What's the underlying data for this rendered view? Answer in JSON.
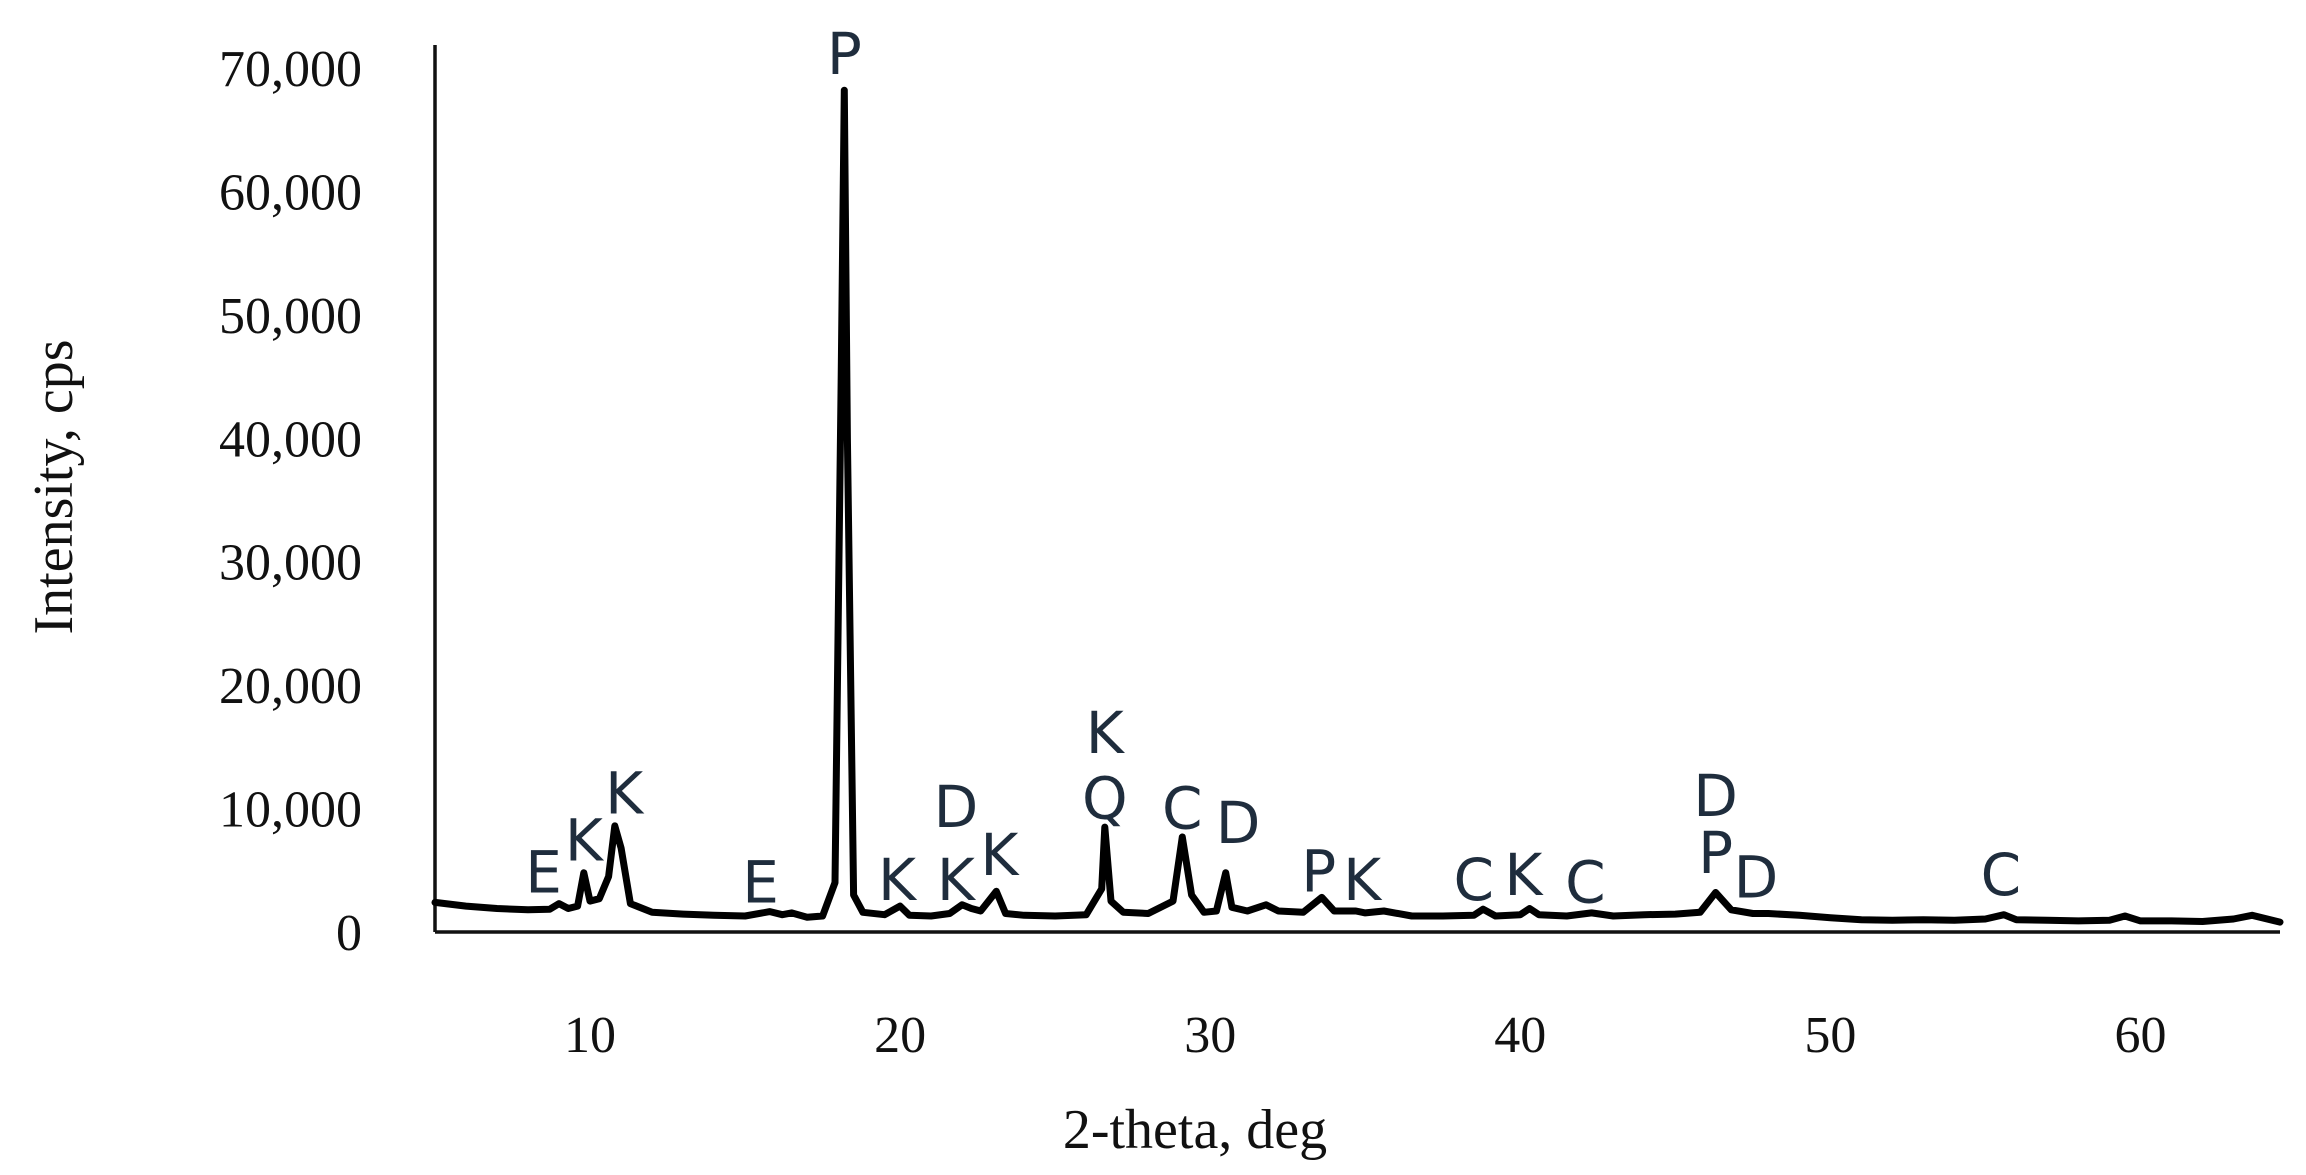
{
  "chart_data": {
    "type": "line",
    "xlabel": "2-theta, deg",
    "ylabel": "Intensity, cps",
    "xlim": [
      5,
      64.5
    ],
    "ylim": [
      0,
      70000
    ],
    "x_ticks": [
      10,
      20,
      30,
      40,
      50,
      60
    ],
    "y_ticks": [
      0,
      10000,
      20000,
      30000,
      40000,
      50000,
      60000,
      70000
    ],
    "y_tick_labels": [
      "0",
      "10,000",
      "20,000",
      "30,000",
      "40,000",
      "50,000",
      "60,000",
      "70,000"
    ],
    "grid": false,
    "legend": "none",
    "series": [
      {
        "points": [
          [
            5.0,
            2400
          ],
          [
            6.0,
            2100
          ],
          [
            7.0,
            1900
          ],
          [
            8.0,
            1800
          ],
          [
            8.7,
            1850
          ],
          [
            9.0,
            2300
          ],
          [
            9.3,
            1900
          ],
          [
            9.6,
            2100
          ],
          [
            9.8,
            4800
          ],
          [
            10.0,
            2500
          ],
          [
            10.3,
            2700
          ],
          [
            10.6,
            4500
          ],
          [
            10.8,
            8600
          ],
          [
            11.0,
            6800
          ],
          [
            11.3,
            2300
          ],
          [
            12.0,
            1600
          ],
          [
            13.0,
            1450
          ],
          [
            14.0,
            1350
          ],
          [
            15.0,
            1300
          ],
          [
            15.8,
            1650
          ],
          [
            16.2,
            1400
          ],
          [
            16.5,
            1550
          ],
          [
            17.0,
            1200
          ],
          [
            17.5,
            1300
          ],
          [
            17.9,
            4000
          ],
          [
            18.1,
            45000
          ],
          [
            18.2,
            68200
          ],
          [
            18.3,
            40000
          ],
          [
            18.5,
            3000
          ],
          [
            18.8,
            1600
          ],
          [
            19.5,
            1400
          ],
          [
            20.0,
            2100
          ],
          [
            20.3,
            1350
          ],
          [
            21.0,
            1300
          ],
          [
            21.6,
            1500
          ],
          [
            22.0,
            2200
          ],
          [
            22.3,
            1900
          ],
          [
            22.6,
            1700
          ],
          [
            23.1,
            3300
          ],
          [
            23.4,
            1500
          ],
          [
            24.0,
            1350
          ],
          [
            25.0,
            1300
          ],
          [
            26.0,
            1400
          ],
          [
            26.5,
            3500
          ],
          [
            26.6,
            8500
          ],
          [
            26.8,
            2500
          ],
          [
            27.2,
            1600
          ],
          [
            28.0,
            1500
          ],
          [
            28.8,
            2500
          ],
          [
            29.1,
            7700
          ],
          [
            29.4,
            3000
          ],
          [
            29.8,
            1600
          ],
          [
            30.2,
            1700
          ],
          [
            30.5,
            4800
          ],
          [
            30.7,
            2000
          ],
          [
            31.2,
            1700
          ],
          [
            31.8,
            2200
          ],
          [
            32.2,
            1700
          ],
          [
            33.0,
            1600
          ],
          [
            33.6,
            2800
          ],
          [
            34.0,
            1700
          ],
          [
            34.7,
            1700
          ],
          [
            35.0,
            1550
          ],
          [
            35.6,
            1700
          ],
          [
            36.5,
            1300
          ],
          [
            37.5,
            1300
          ],
          [
            38.5,
            1350
          ],
          [
            38.8,
            1850
          ],
          [
            39.2,
            1300
          ],
          [
            40.0,
            1400
          ],
          [
            40.3,
            1900
          ],
          [
            40.6,
            1400
          ],
          [
            41.5,
            1300
          ],
          [
            42.3,
            1550
          ],
          [
            43.0,
            1300
          ],
          [
            44.0,
            1400
          ],
          [
            45.0,
            1450
          ],
          [
            45.8,
            1600
          ],
          [
            46.3,
            3200
          ],
          [
            46.8,
            1800
          ],
          [
            47.5,
            1500
          ],
          [
            48.0,
            1500
          ],
          [
            49.0,
            1350
          ],
          [
            50.0,
            1150
          ],
          [
            51.0,
            1000
          ],
          [
            52.0,
            950
          ],
          [
            53.0,
            1000
          ],
          [
            54.0,
            950
          ],
          [
            55.0,
            1050
          ],
          [
            55.6,
            1400
          ],
          [
            56.0,
            1000
          ],
          [
            57.0,
            950
          ],
          [
            58.0,
            900
          ],
          [
            59.0,
            950
          ],
          [
            59.5,
            1300
          ],
          [
            60.0,
            900
          ],
          [
            61.0,
            900
          ],
          [
            62.0,
            850
          ],
          [
            63.0,
            1050
          ],
          [
            63.6,
            1350
          ],
          [
            64.5,
            800
          ]
        ]
      }
    ],
    "annotations": [
      {
        "text": "E",
        "x": 8.5,
        "y": 3200
      },
      {
        "text": "K",
        "x": 9.8,
        "y": 5800
      },
      {
        "text": "K",
        "x": 11.1,
        "y": 9600
      },
      {
        "text": "E",
        "x": 15.5,
        "y": 2400
      },
      {
        "text": "P",
        "x": 18.2,
        "y": 69500
      },
      {
        "text": "K",
        "x": 19.9,
        "y": 2600
      },
      {
        "text": "D",
        "x": 21.8,
        "y": 8500
      },
      {
        "text": "K",
        "x": 21.8,
        "y": 2600
      },
      {
        "text": "K",
        "x": 23.2,
        "y": 4600
      },
      {
        "text": "K",
        "x": 26.6,
        "y": 14500
      },
      {
        "text": "Q",
        "x": 26.6,
        "y": 9200
      },
      {
        "text": "C",
        "x": 29.1,
        "y": 8400
      },
      {
        "text": "D",
        "x": 30.9,
        "y": 7200
      },
      {
        "text": "P",
        "x": 33.5,
        "y": 3300
      },
      {
        "text": "K",
        "x": 34.9,
        "y": 2600
      },
      {
        "text": "C",
        "x": 38.5,
        "y": 2600
      },
      {
        "text": "K",
        "x": 40.1,
        "y": 3000
      },
      {
        "text": "C",
        "x": 42.1,
        "y": 2400
      },
      {
        "text": "D",
        "x": 46.3,
        "y": 9400
      },
      {
        "text": "P",
        "x": 46.3,
        "y": 4800
      },
      {
        "text": "D",
        "x": 47.6,
        "y": 2800
      },
      {
        "text": "C",
        "x": 55.5,
        "y": 3000
      }
    ]
  }
}
